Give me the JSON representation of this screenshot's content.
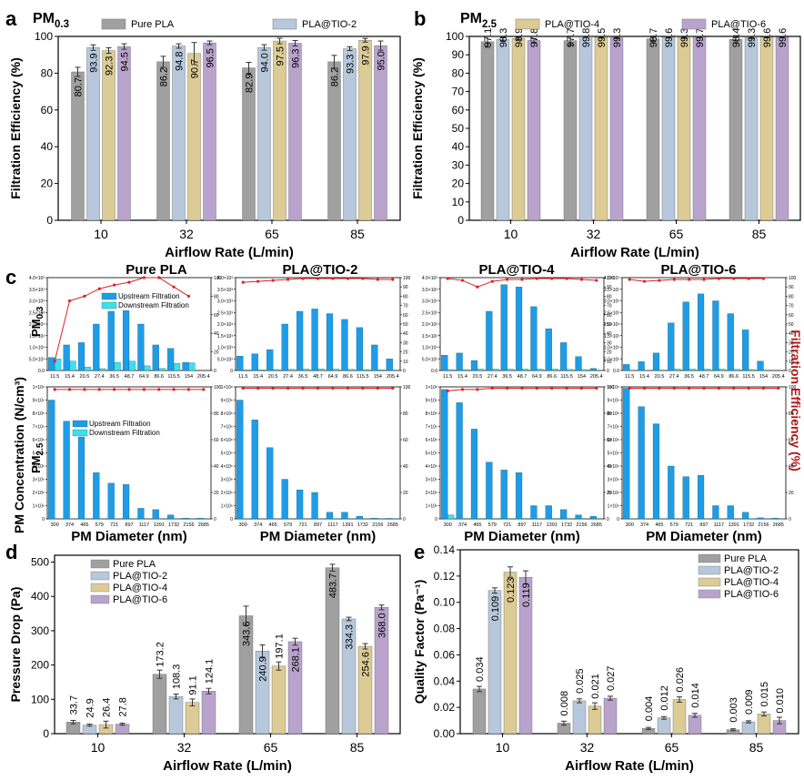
{
  "colors": {
    "pure": "#a0a0a0",
    "tio2": "#b7c8dc",
    "tio4": "#dccb94",
    "tio6": "#b9a3cd",
    "upstream": "#1e9ce8",
    "downstream": "#3ee0ee",
    "efficiency": "#e02020",
    "eff_label": "#b01818"
  },
  "chart_data": [
    {
      "id": "a",
      "panel_label": "a",
      "type": "bar",
      "title": "PM0.3",
      "title_main": "PM",
      "title_sub": "0.3",
      "categories": [
        "10",
        "32",
        "65",
        "85"
      ],
      "xlabel": "Airflow Rate (L/min)",
      "ylabel": "Filtration Efficiency (%)",
      "ylim": [
        0,
        100
      ],
      "yticks": [
        0,
        20,
        40,
        60,
        80,
        100
      ],
      "series": [
        {
          "name": "Pure PLA",
          "values": [
            80.7,
            86.2,
            82.9,
            86.2
          ],
          "errors": [
            2.5,
            3,
            3,
            3.5
          ]
        },
        {
          "name": "PLA@TIO-2",
          "values": [
            93.9,
            94.8,
            94.0,
            93.3
          ],
          "errors": [
            1.5,
            1.2,
            1.5,
            1
          ]
        },
        {
          "name": "",
          "values": [
            92.3,
            90.7,
            97.5,
            97.9
          ],
          "errors": [
            1.5,
            6,
            1.5,
            1
          ]
        },
        {
          "name": "",
          "values": [
            94.5,
            96.5,
            96.3,
            95.0
          ],
          "errors": [
            1.5,
            1,
            1.5,
            2.5
          ]
        }
      ],
      "labels": [
        [
          "80.7",
          "86.2",
          "82.9",
          "86.2"
        ],
        [
          "93.9",
          "94.8",
          "94.0",
          "93.3"
        ],
        [
          "92.3",
          "90.7",
          "97.5",
          "97.9"
        ],
        [
          "94.5",
          "96.5",
          "96.3",
          "95.0"
        ]
      ]
    },
    {
      "id": "b",
      "panel_label": "b",
      "type": "bar",
      "title": "PM2.5",
      "title_main": "PM",
      "title_sub": "2.5",
      "categories": [
        "10",
        "32",
        "65",
        "85"
      ],
      "xlabel": "Airflow Rate (L/min)",
      "ylabel": "Filtration Efficiency (%)",
      "ylim": [
        0,
        100
      ],
      "yticks": [
        0,
        10,
        20,
        30,
        40,
        50,
        60,
        70,
        80,
        90,
        100
      ],
      "series": [
        {
          "name": "",
          "values": [
            97.1,
            97.7,
            98.7,
            98.4
          ],
          "errors": [
            3,
            2.5,
            1.5,
            2
          ]
        },
        {
          "name": "",
          "values": [
            98.3,
            99.8,
            99.6,
            99.3
          ],
          "errors": [
            1,
            0.3,
            0.4,
            0.6
          ]
        },
        {
          "name": "PLA@TIO-4",
          "values": [
            98.9,
            99.5,
            99.3,
            99.6
          ],
          "errors": [
            0.6,
            0.4,
            0.4,
            0.3
          ]
        },
        {
          "name": "PLA@TIO-6",
          "values": [
            97.8,
            99.3,
            99.7,
            99.6
          ],
          "errors": [
            1,
            0.5,
            0.3,
            0.3
          ]
        }
      ],
      "labels": [
        [
          "97.1",
          "97.7",
          "98.7",
          "98.4"
        ],
        [
          "98.3",
          "99.8",
          "99.6",
          "99.3"
        ],
        [
          "98.9",
          "99.5",
          "99.3",
          "99.6"
        ],
        [
          "97.8",
          "99.3",
          "99.7",
          "99.6"
        ]
      ]
    },
    {
      "id": "c",
      "panel_label": "c",
      "type": "bar+line",
      "titles": [
        "Pure PLA",
        "PLA@TIO-2",
        "PLA@TIO-4",
        "PLA@TIO-6"
      ],
      "ylabel_left": "PM Concentration (N/cm³)",
      "row_label_top_main": "PM",
      "row_label_top_sub": "0.3",
      "row_label_bot_main": "PM",
      "row_label_bot_sub": "2.5",
      "ylabel_right": "Filtration Efficiency (%)",
      "xlabel": "PM  Diameter (nm)",
      "legend": [
        "Upstream Filtration",
        "Downstream Filtration"
      ],
      "top_x": [
        "11.5",
        "15.4",
        "20.5",
        "27.4",
        "36.5",
        "48.7",
        "64.9",
        "86.6",
        "115.5",
        "154",
        "205.4"
      ],
      "bot_x": [
        "300",
        "374",
        "465",
        "579",
        "721",
        "897",
        "1117",
        "1391",
        "1732",
        "2156",
        "2685"
      ],
      "top_yticks_1_3": [
        "0.0",
        "5.0×10²",
        "1.0×10³",
        "1.5×10³",
        "2.0×10³",
        "2.5×10³",
        "3.0×10³",
        "3.5×10³",
        "4.0×10³"
      ],
      "top_yticks_2": [
        "0",
        "5.0×10²",
        "1.0×10³",
        "1.5×10³",
        "2.0×10³",
        "2.5×10³",
        "3.0×10³",
        "3.5×10³",
        "4.0×10³"
      ],
      "top_yticks_4": [
        "0.0",
        "5.0×10²",
        "1.0×10³",
        "1.5×10³",
        "2.0×10³",
        "2.5×10³",
        "3.0×10³",
        "3.5×10³",
        "4.0×10³"
      ],
      "top_yticks_eff": [
        "0",
        "10",
        "20",
        "30",
        "40",
        "50",
        "60",
        "70",
        "80",
        "90",
        "100"
      ],
      "top_yticks_eff_c1": [
        "0",
        "20",
        "40",
        "60",
        "80",
        "100"
      ],
      "bot_yticks": [
        "0",
        "1×10⁶",
        "2×10⁶",
        "3×10⁶",
        "4×10⁶",
        "5×10⁶",
        "6×10⁶",
        "7×10⁶",
        "8×10⁶",
        "9×10⁶",
        "1×10⁸"
      ],
      "bot_yticks_eff": [
        "0",
        "20",
        "40",
        "60",
        "80",
        "100"
      ],
      "top_ymax": 4000,
      "bot_ymax": 10000000,
      "top": [
        {
          "up": [
            560,
            1100,
            1200,
            2000,
            2550,
            2580,
            2000,
            1100,
            950,
            350,
            0
          ],
          "down": [
            500,
            400,
            150,
            80,
            350,
            400,
            200,
            90,
            300,
            330,
            0
          ],
          "eff": [
            10,
            75,
            80,
            88,
            92,
            95,
            100,
            100,
            90,
            80
          ]
        },
        {
          "up": [
            620,
            720,
            900,
            2000,
            2550,
            2650,
            2450,
            2200,
            1850,
            1100,
            500
          ],
          "down": [
            30,
            30,
            40,
            50,
            60,
            70,
            60,
            50,
            40,
            30,
            20
          ],
          "eff": [
            95,
            96,
            97,
            98,
            99,
            99,
            99,
            99,
            99,
            98,
            98
          ]
        },
        {
          "up": [
            660,
            750,
            430,
            2550,
            3700,
            3600,
            2750,
            1800,
            1200,
            600,
            90
          ],
          "down": [
            40,
            40,
            60,
            60,
            60,
            60,
            60,
            60,
            50,
            40,
            10
          ],
          "eff": [
            99,
            97,
            90,
            96,
            98,
            98,
            99,
            99,
            99,
            98,
            97
          ]
        },
        {
          "up": [
            260,
            380,
            750,
            2050,
            2950,
            3300,
            3000,
            2450,
            1750,
            400,
            0
          ],
          "down": [
            10,
            10,
            20,
            60,
            60,
            60,
            60,
            50,
            40,
            20,
            0
          ],
          "eff": [
            98,
            96,
            97,
            98,
            98,
            98,
            99,
            99,
            99,
            99
          ]
        }
      ],
      "bot": [
        {
          "up": [
            9000000,
            7400000,
            6200000,
            3500000,
            2700000,
            2600000,
            800000,
            700000,
            300000,
            60000,
            60000
          ],
          "down": [
            20000,
            20000,
            20000,
            20000,
            20000,
            20000,
            20000,
            20000,
            20000,
            20000,
            20000
          ],
          "eff": [
            98,
            98,
            98,
            98,
            98,
            98,
            98,
            98,
            98,
            98,
            98
          ]
        },
        {
          "up": [
            9000000,
            7500000,
            5400000,
            3000000,
            2200000,
            2000000,
            500000,
            500000,
            200000,
            60000,
            40000
          ],
          "down": [
            10000,
            10000,
            10000,
            10000,
            10000,
            10000,
            10000,
            10000,
            10000,
            10000,
            10000
          ],
          "eff": [
            99,
            99,
            99,
            99,
            99,
            99,
            99,
            99,
            99,
            99,
            99
          ]
        },
        {
          "up": [
            9800000,
            8800000,
            6800000,
            4300000,
            3700000,
            3500000,
            1000000,
            1000000,
            700000,
            300000,
            200000
          ],
          "down": [
            300000,
            30000,
            30000,
            30000,
            30000,
            30000,
            30000,
            30000,
            30000,
            30000,
            30000
          ],
          "eff": [
            97,
            98,
            98,
            99,
            99,
            99,
            99,
            99,
            99,
            99,
            99
          ]
        },
        {
          "up": [
            9900000,
            8500000,
            7200000,
            4000000,
            3200000,
            3300000,
            1000000,
            1000000,
            500000,
            80000,
            60000
          ],
          "down": [
            20000,
            20000,
            20000,
            20000,
            20000,
            20000,
            20000,
            20000,
            20000,
            20000,
            20000
          ],
          "eff": [
            99,
            99,
            99,
            99,
            99,
            99,
            99,
            99,
            99,
            99,
            99
          ]
        }
      ]
    },
    {
      "id": "d",
      "panel_label": "d",
      "type": "bar",
      "categories": [
        "10",
        "32",
        "65",
        "85"
      ],
      "xlabel": "Airflow Rate (L/min)",
      "ylabel": "Pressure Drop (Pa)",
      "ylim": [
        0,
        520
      ],
      "yticks": [
        0,
        100,
        200,
        300,
        400,
        500
      ],
      "series": [
        {
          "name": "Pure PLA",
          "values": [
            33.7,
            173.2,
            343.6,
            483.7
          ],
          "errors": [
            5,
            12,
            28,
            10
          ]
        },
        {
          "name": "PLA@TIO-2",
          "values": [
            24.9,
            108.3,
            240.9,
            334.3
          ],
          "errors": [
            3,
            7,
            18,
            5
          ]
        },
        {
          "name": "PLA@TIO-4",
          "values": [
            26.4,
            91.1,
            197.1,
            254.6
          ],
          "errors": [
            10,
            10,
            12,
            8
          ]
        },
        {
          "name": "PLA@TIO-6",
          "values": [
            27.8,
            124.1,
            268.1,
            368.0
          ],
          "errors": [
            3,
            8,
            10,
            7
          ]
        }
      ],
      "labels": [
        [
          "33.7",
          "173.2",
          "343.6",
          "483.7"
        ],
        [
          "24.9",
          "108.3",
          "240.9",
          "334.3"
        ],
        [
          "26.4",
          "91.1",
          "197.1",
          "254.6"
        ],
        [
          "27.8",
          "124.1",
          "268.1",
          "368.0"
        ]
      ]
    },
    {
      "id": "e",
      "panel_label": "e",
      "type": "bar",
      "categories": [
        "10",
        "32",
        "65",
        "85"
      ],
      "xlabel": "Airflow Rate (L/min)",
      "ylabel": "Quality Factor (Pa⁻¹)",
      "ylim": [
        0,
        0.14
      ],
      "yticks": [
        "0.00",
        "0.02",
        "0.04",
        "0.06",
        "0.08",
        "0.10",
        "0.12",
        "0.14"
      ],
      "series": [
        {
          "name": "Pure PLA",
          "values": [
            0.034,
            0.008,
            0.004,
            0.003
          ],
          "errors": [
            0.002,
            0.0015,
            0.0008,
            0.0007
          ]
        },
        {
          "name": "PLA@TIO-2",
          "values": [
            0.109,
            0.025,
            0.012,
            0.009
          ],
          "errors": [
            0.002,
            0.0015,
            0.001,
            0.0008
          ]
        },
        {
          "name": "PLA@TIO-4",
          "values": [
            0.123,
            0.021,
            0.026,
            0.015
          ],
          "errors": [
            0.004,
            0.0025,
            0.002,
            0.0015
          ]
        },
        {
          "name": "PLA@TIO-6",
          "values": [
            0.119,
            0.027,
            0.014,
            0.01
          ],
          "errors": [
            0.005,
            0.0015,
            0.0015,
            0.0025
          ]
        }
      ],
      "labels": [
        [
          "0.034",
          "0.008",
          "0.004",
          "0.003"
        ],
        [
          "0.109",
          "0.025",
          "0.012",
          "0.009"
        ],
        [
          "0.123",
          "0.021",
          "0.026",
          "0.015"
        ],
        [
          "0.119",
          "0.027",
          "0.014",
          "0.010"
        ]
      ]
    }
  ]
}
